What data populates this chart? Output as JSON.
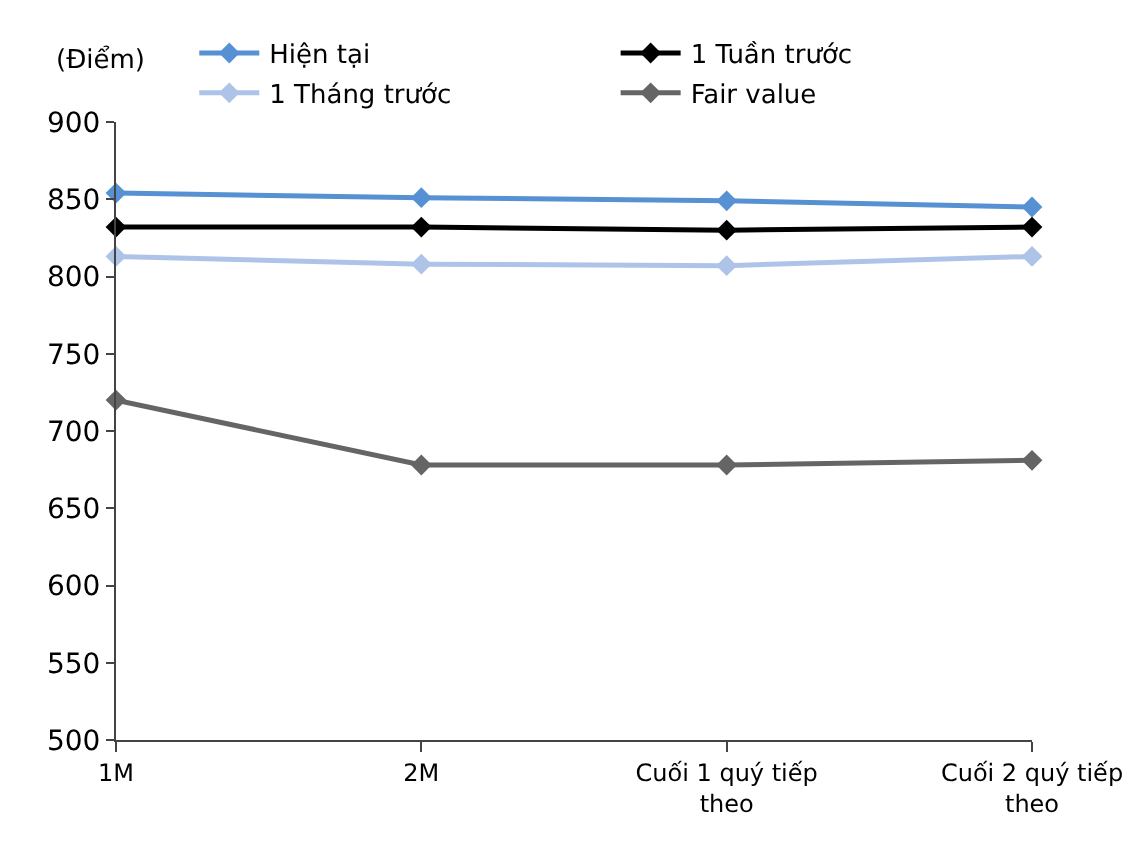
{
  "chart_data": {
    "type": "line",
    "ylabel": "(Điểm)",
    "categories": [
      "1M",
      "2M",
      "Cuối 1 quý tiếp theo",
      "Cuối 2 quý tiếp theo"
    ],
    "series": [
      {
        "name": "Hiện tại",
        "color": "#5591d3",
        "values": [
          854,
          851,
          849,
          845
        ]
      },
      {
        "name": "1 Tuần trước",
        "color": "#000000",
        "values": [
          832,
          832,
          830,
          832
        ]
      },
      {
        "name": "1 Tháng trước",
        "color": "#adc4e8",
        "values": [
          813,
          808,
          807,
          813
        ]
      },
      {
        "name": "Fair value",
        "color": "#656565",
        "values": [
          720,
          678,
          678,
          681
        ]
      }
    ],
    "ylim": [
      500,
      900
    ],
    "yticks": [
      500,
      550,
      600,
      650,
      700,
      750,
      800,
      850,
      900
    ],
    "legend": "top",
    "marker": "diamond",
    "line_style": "solid"
  }
}
